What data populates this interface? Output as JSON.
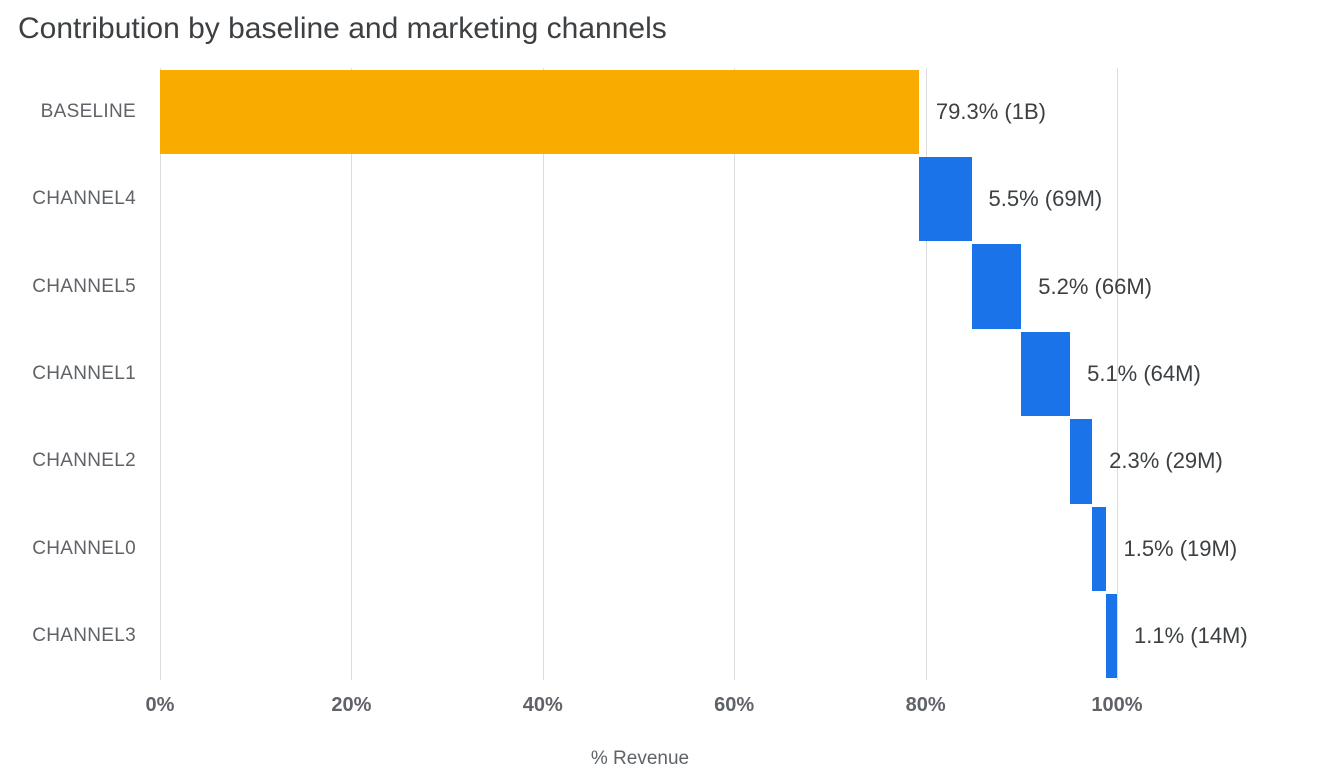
{
  "title": "Contribution by baseline and marketing channels",
  "chart_data": {
    "type": "bar",
    "subtype": "waterfall",
    "orientation": "horizontal",
    "title": "Contribution by baseline and marketing channels",
    "xlabel": "% Revenue",
    "ylabel": "",
    "xlim": [
      0,
      120
    ],
    "grid": "vertical",
    "legend": "none",
    "categories": [
      "BASELINE",
      "CHANNEL4",
      "CHANNEL5",
      "CHANNEL1",
      "CHANNEL2",
      "CHANNEL0",
      "CHANNEL3"
    ],
    "values": [
      79.3,
      5.5,
      5.2,
      5.1,
      2.3,
      1.5,
      1.1
    ],
    "cumulative_start": [
      0,
      79.3,
      84.8,
      90.0,
      95.1,
      97.4,
      98.9
    ],
    "cumulative_end": [
      79.3,
      84.8,
      90.0,
      95.1,
      97.4,
      98.9,
      100.0
    ],
    "data_labels": [
      "79.3% (1B)",
      "5.5% (69M)",
      "5.2% (66M)",
      "5.1% (64M)",
      "2.3% (29M)",
      "1.5% (19M)",
      "1.1% (14M)"
    ],
    "bar_colors": [
      "#F9AB00",
      "#1A73E8",
      "#1A73E8",
      "#1A73E8",
      "#1A73E8",
      "#1A73E8",
      "#1A73E8"
    ],
    "x_ticks": [
      {
        "value": 0,
        "label": "0%"
      },
      {
        "value": 20,
        "label": "20%"
      },
      {
        "value": 40,
        "label": "40%"
      },
      {
        "value": 60,
        "label": "60%"
      },
      {
        "value": 80,
        "label": "80%"
      },
      {
        "value": 100,
        "label": "100%"
      }
    ],
    "colors": {
      "baseline_bar": "#F9AB00",
      "channel_bar": "#1A73E8",
      "gridline": "#dadce0",
      "title_text": "#3c4043",
      "label_text": "#3c4043",
      "axis_text": "#5f6368"
    }
  }
}
